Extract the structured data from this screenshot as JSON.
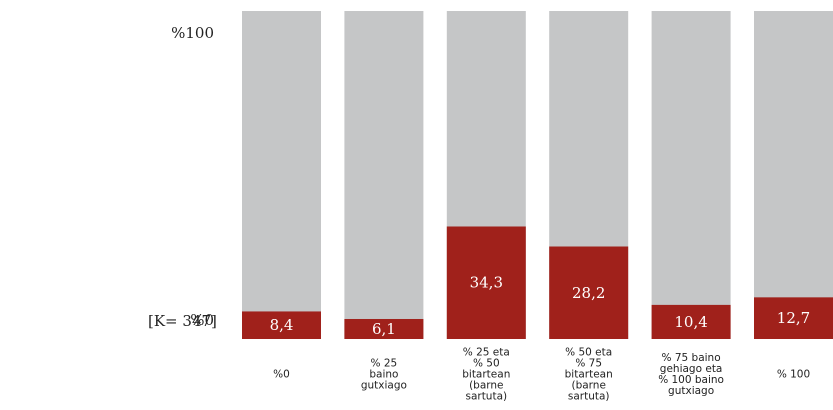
{
  "chart_data": {
    "type": "bar",
    "stacked_percent": true,
    "sample_label": "[K= 347]",
    "y_ticks": [
      "%100",
      "%0"
    ],
    "ylim": [
      0,
      100
    ],
    "categories": [
      [
        "%0"
      ],
      [
        "% 25",
        "baino",
        "gutxiago"
      ],
      [
        "% 25 eta",
        "% 50",
        "bitartean",
        "(barne",
        "sartuta)"
      ],
      [
        "% 50 eta",
        "% 75",
        "bitartean",
        "(barne",
        "sartuta)"
      ],
      [
        "% 75 baino",
        "gehiago eta",
        "% 100 baino",
        "gutxiago"
      ],
      [
        "% 100"
      ]
    ],
    "values": [
      8.4,
      6.1,
      34.3,
      28.2,
      10.4,
      12.7
    ],
    "value_labels": [
      "8,4",
      "6,1",
      "34,3",
      "28,2",
      "10,4",
      "12,7"
    ],
    "colors": {
      "value": "#a0211b",
      "remainder": "#c5c6c7"
    }
  }
}
